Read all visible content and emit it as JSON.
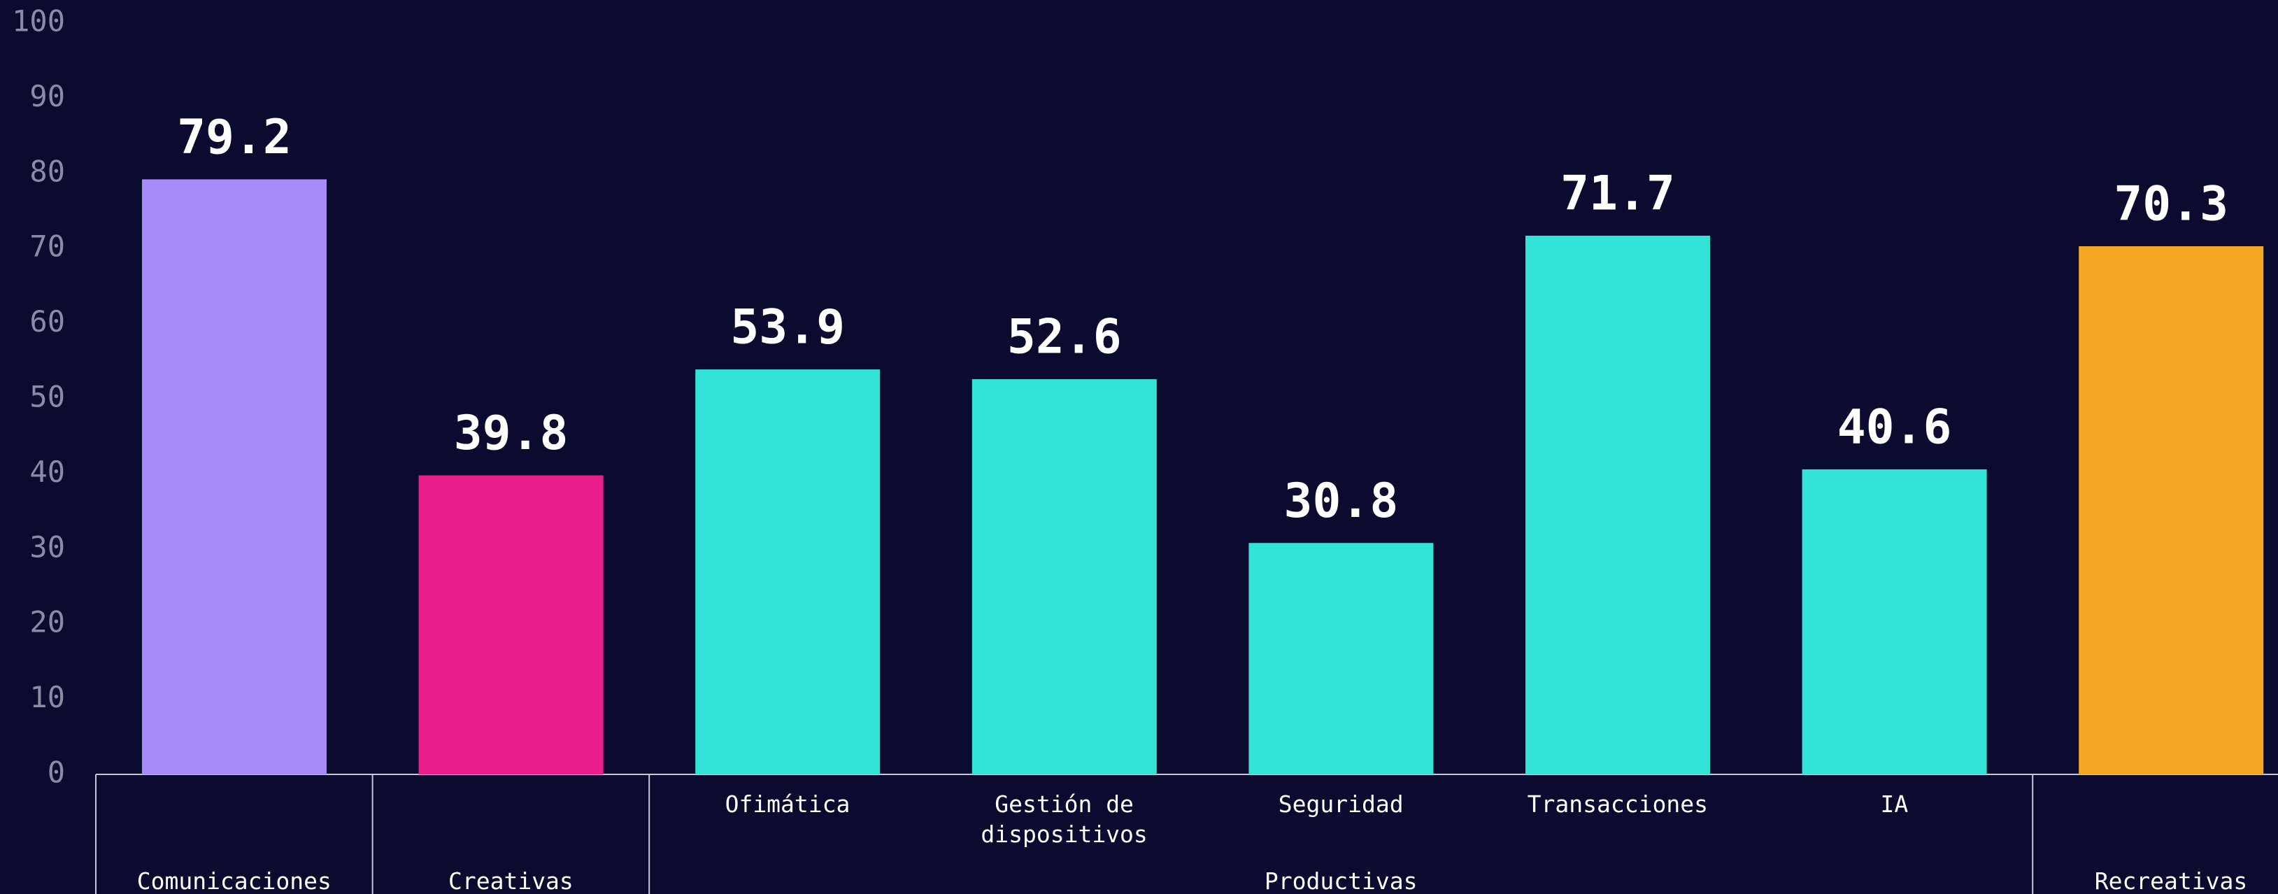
{
  "chart_data": {
    "type": "bar",
    "categories": [
      null,
      null,
      "Ofimática",
      "Gestión de dispositivos",
      "Seguridad",
      "Transacciones",
      "IA",
      null
    ],
    "values": [
      79.2,
      39.8,
      53.9,
      52.6,
      30.8,
      71.7,
      40.6,
      70.3
    ],
    "colors": [
      "#a78bf8",
      "#e91e8c",
      "#33e3d8",
      "#33e3d8",
      "#33e3d8",
      "#33e3d8",
      "#33e3d8",
      "#f5a623"
    ],
    "groups": [
      {
        "name": "Comunicaciones",
        "span": 1
      },
      {
        "name": "Creativas",
        "span": 1
      },
      {
        "name": "Productivas",
        "span": 5
      },
      {
        "name": "Recreativas",
        "span": 1
      }
    ],
    "ylim": [
      0,
      100
    ],
    "yticks": [
      0,
      10,
      20,
      30,
      40,
      50,
      60,
      70,
      80,
      90,
      100
    ],
    "grid": false
  }
}
